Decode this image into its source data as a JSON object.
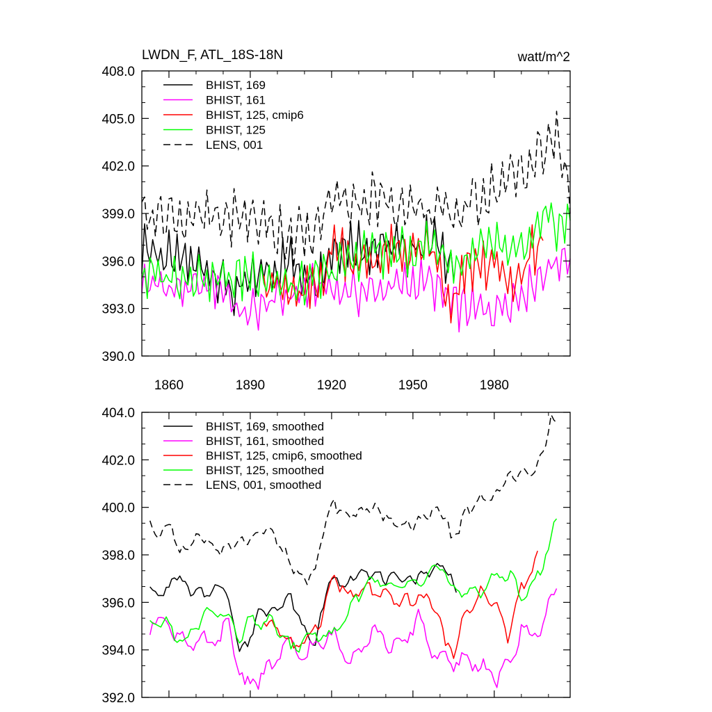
{
  "figure": {
    "title_left": "LWDN_F, ATL_18S-18N",
    "title_right": "watt/m^2"
  },
  "chart_data": [
    {
      "type": "line",
      "title": "LWDN_F, ATL_18S-18N",
      "units": "watt/m^2",
      "xlim": [
        1850,
        2008
      ],
      "ylim": [
        390,
        408
      ],
      "x_ticks": [
        1860,
        1890,
        1920,
        1950,
        1980
      ],
      "x_tick_labels": [
        "1860",
        "1890",
        "1920",
        "1950",
        "1980"
      ],
      "y_ticks": [
        390,
        393,
        396,
        399,
        402,
        405,
        408
      ],
      "y_tick_labels": [
        "390.0",
        "393.0",
        "396.0",
        "399.0",
        "402.0",
        "405.0",
        "408.0"
      ],
      "series": [
        {
          "name": "BHIST, 169",
          "color": "#000000",
          "dash": "",
          "x_start": 1850,
          "x_end": 1965,
          "period": 2.8,
          "base": [
            [
              1850,
              397.2
            ],
            [
              1860,
              396.0
            ],
            [
              1875,
              395.6
            ],
            [
              1885,
              393.8
            ],
            [
              1895,
              395.4
            ],
            [
              1905,
              396.0
            ],
            [
              1915,
              395.0
            ],
            [
              1922,
              397.2
            ],
            [
              1932,
              397.0
            ],
            [
              1945,
              396.8
            ],
            [
              1958,
              397.2
            ],
            [
              1965,
              396.0
            ]
          ],
          "amp": 1.7,
          "phase": 0.0
        },
        {
          "name": "BHIST, 161",
          "color": "#ff00ff",
          "dash": "",
          "x_start": 1850,
          "x_end": 2008,
          "period": 3.1,
          "base": [
            [
              1850,
              394.6
            ],
            [
              1865,
              394.2
            ],
            [
              1880,
              394.4
            ],
            [
              1887,
              392.5
            ],
            [
              1900,
              393.6
            ],
            [
              1915,
              394.4
            ],
            [
              1930,
              394.0
            ],
            [
              1945,
              394.4
            ],
            [
              1955,
              394.8
            ],
            [
              1965,
              393.2
            ],
            [
              1978,
              392.8
            ],
            [
              1990,
              394.0
            ],
            [
              2000,
              395.6
            ],
            [
              2008,
              396.4
            ]
          ],
          "amp": 1.4,
          "phase": 1.3
        },
        {
          "name": "BHIST, 125, cmip6",
          "color": "#ff0000",
          "dash": "",
          "x_start": 1895,
          "x_end": 1998,
          "period": 2.6,
          "base": [
            [
              1895,
              395.0
            ],
            [
              1907,
              393.6
            ],
            [
              1915,
              394.4
            ],
            [
              1921,
              397.2
            ],
            [
              1930,
              395.8
            ],
            [
              1940,
              396.4
            ],
            [
              1950,
              396.6
            ],
            [
              1958,
              396.4
            ],
            [
              1964,
              392.6
            ],
            [
              1970,
              395.6
            ],
            [
              1980,
              395.8
            ],
            [
              1986,
              394.2
            ],
            [
              1998,
              397.6
            ]
          ],
          "amp": 1.6,
          "phase": 2.1
        },
        {
          "name": "BHIST, 125",
          "color": "#00ff00",
          "dash": "",
          "x_start": 1850,
          "x_end": 2008,
          "period": 2.9,
          "base": [
            [
              1850,
              395.0
            ],
            [
              1870,
              395.2
            ],
            [
              1882,
              394.8
            ],
            [
              1892,
              395.4
            ],
            [
              1905,
              394.2
            ],
            [
              1915,
              394.8
            ],
            [
              1925,
              395.8
            ],
            [
              1935,
              396.8
            ],
            [
              1945,
              396.4
            ],
            [
              1958,
              397.2
            ],
            [
              1965,
              395.6
            ],
            [
              1975,
              396.8
            ],
            [
              1990,
              396.4
            ],
            [
              2000,
              398.6
            ],
            [
              2008,
              398.2
            ]
          ],
          "amp": 1.6,
          "phase": 0.7
        },
        {
          "name": "LENS, 001",
          "color": "#000000",
          "dash": "10,6",
          "x_start": 1850,
          "x_end": 2008,
          "period": 3.4,
          "base": [
            [
              1850,
              399.2
            ],
            [
              1870,
              398.6
            ],
            [
              1890,
              398.8
            ],
            [
              1905,
              397.6
            ],
            [
              1913,
              397.4
            ],
            [
              1920,
              400.0
            ],
            [
              1940,
              399.8
            ],
            [
              1955,
              399.2
            ],
            [
              1965,
              398.8
            ],
            [
              1975,
              400.2
            ],
            [
              1985,
              401.0
            ],
            [
              1995,
              402.4
            ],
            [
              2003,
              403.8
            ],
            [
              2008,
              400.6
            ]
          ],
          "amp": 1.9,
          "phase": 0.4
        }
      ]
    },
    {
      "type": "line",
      "title": "",
      "xlim": [
        1850,
        2008
      ],
      "ylim": [
        392,
        404
      ],
      "x_ticks": [
        1860,
        1890,
        1920,
        1950,
        1980
      ],
      "y_ticks": [
        392,
        394,
        396,
        398,
        400,
        402,
        404
      ],
      "y_tick_labels": [
        "392.0",
        "394.0",
        "396.0",
        "398.0",
        "400.0",
        "402.0",
        "404.0"
      ],
      "series": [
        {
          "name": "BHIST, 169, smoothed",
          "color": "#000000",
          "dash": "",
          "x_start": 1853,
          "x_end": 1966,
          "period": 5.5,
          "base": [
            [
              1853,
              396.8
            ],
            [
              1855,
              396.2
            ],
            [
              1860,
              396.6
            ],
            [
              1863,
              397.2
            ],
            [
              1868,
              396.4
            ],
            [
              1875,
              396.4
            ],
            [
              1880,
              396.8
            ],
            [
              1884,
              395.2
            ],
            [
              1886,
              394.0
            ],
            [
              1889,
              394.2
            ],
            [
              1893,
              395.6
            ],
            [
              1900,
              395.8
            ],
            [
              1905,
              396.2
            ],
            [
              1910,
              394.8
            ],
            [
              1914,
              394.2
            ],
            [
              1918,
              396.6
            ],
            [
              1921,
              397.0
            ],
            [
              1925,
              396.6
            ],
            [
              1930,
              397.4
            ],
            [
              1940,
              397.0
            ],
            [
              1950,
              397.0
            ],
            [
              1958,
              397.4
            ],
            [
              1962,
              397.6
            ],
            [
              1966,
              396.4
            ]
          ],
          "amp": 0.25,
          "phase": 0.3
        },
        {
          "name": "BHIST, 161, smoothed",
          "color": "#ff00ff",
          "dash": "",
          "x_start": 1853,
          "x_end": 2003,
          "period": 8.0,
          "base": [
            [
              1853,
              395.0
            ],
            [
              1858,
              395.4
            ],
            [
              1863,
              394.6
            ],
            [
              1870,
              394.2
            ],
            [
              1878,
              394.4
            ],
            [
              1882,
              395.0
            ],
            [
              1886,
              393.2
            ],
            [
              1888,
              392.5
            ],
            [
              1892,
              392.8
            ],
            [
              1898,
              393.2
            ],
            [
              1902,
              394.2
            ],
            [
              1910,
              393.8
            ],
            [
              1920,
              394.6
            ],
            [
              1927,
              393.6
            ],
            [
              1935,
              394.8
            ],
            [
              1945,
              394.0
            ],
            [
              1952,
              395.4
            ],
            [
              1958,
              393.8
            ],
            [
              1965,
              393.4
            ],
            [
              1972,
              393.6
            ],
            [
              1980,
              392.8
            ],
            [
              1986,
              393.4
            ],
            [
              1990,
              395.0
            ],
            [
              1994,
              394.4
            ],
            [
              2000,
              395.8
            ],
            [
              2003,
              396.4
            ]
          ],
          "amp": 0.45,
          "phase": 1.0
        },
        {
          "name": "BHIST, 125, cmip6, smoothed",
          "color": "#ff0000",
          "dash": "",
          "x_start": 1895,
          "x_end": 1996,
          "period": 7.0,
          "base": [
            [
              1895,
              395.2
            ],
            [
              1902,
              394.8
            ],
            [
              1906,
              394.0
            ],
            [
              1912,
              394.6
            ],
            [
              1917,
              395.6
            ],
            [
              1921,
              397.2
            ],
            [
              1926,
              396.2
            ],
            [
              1933,
              396.6
            ],
            [
              1940,
              396.2
            ],
            [
              1947,
              396.0
            ],
            [
              1952,
              396.2
            ],
            [
              1958,
              396.0
            ],
            [
              1962,
              394.2
            ],
            [
              1965,
              394.0
            ],
            [
              1970,
              395.6
            ],
            [
              1975,
              396.4
            ],
            [
              1980,
              396.0
            ],
            [
              1985,
              394.6
            ],
            [
              1990,
              396.6
            ],
            [
              1995,
              397.6
            ],
            [
              1996,
              397.8
            ]
          ],
          "amp": 0.35,
          "phase": 0.6
        },
        {
          "name": "BHIST, 125, smoothed",
          "color": "#00ff00",
          "dash": "",
          "x_start": 1853,
          "x_end": 2003,
          "period": 7.5,
          "base": [
            [
              1853,
              395.0
            ],
            [
              1858,
              395.2
            ],
            [
              1863,
              394.6
            ],
            [
              1866,
              394.2
            ],
            [
              1872,
              395.4
            ],
            [
              1876,
              395.6
            ],
            [
              1882,
              395.4
            ],
            [
              1886,
              394.4
            ],
            [
              1890,
              395.2
            ],
            [
              1895,
              395.2
            ],
            [
              1900,
              395.0
            ],
            [
              1905,
              394.0
            ],
            [
              1912,
              394.6
            ],
            [
              1920,
              394.6
            ],
            [
              1925,
              395.2
            ],
            [
              1930,
              396.4
            ],
            [
              1935,
              397.0
            ],
            [
              1942,
              396.6
            ],
            [
              1948,
              396.8
            ],
            [
              1955,
              397.2
            ],
            [
              1961,
              397.6
            ],
            [
              1964,
              396.4
            ],
            [
              1970,
              396.4
            ],
            [
              1976,
              396.6
            ],
            [
              1981,
              397.2
            ],
            [
              1986,
              397.0
            ],
            [
              1990,
              396.4
            ],
            [
              1994,
              396.6
            ],
            [
              1998,
              397.6
            ],
            [
              2001,
              398.8
            ],
            [
              2003,
              399.4
            ]
          ],
          "amp": 0.35,
          "phase": 2.0
        },
        {
          "name": "LENS, 001, smoothed",
          "color": "#000000",
          "dash": "10,6",
          "x_start": 1853,
          "x_end": 2003,
          "period": 5.5,
          "base": [
            [
              1853,
              399.2
            ],
            [
              1856,
              398.8
            ],
            [
              1861,
              399.2
            ],
            [
              1864,
              398.0
            ],
            [
              1870,
              398.6
            ],
            [
              1873,
              398.8
            ],
            [
              1878,
              398.2
            ],
            [
              1885,
              398.4
            ],
            [
              1892,
              398.8
            ],
            [
              1896,
              399.0
            ],
            [
              1900,
              398.6
            ],
            [
              1905,
              397.6
            ],
            [
              1910,
              397.0
            ],
            [
              1914,
              397.2
            ],
            [
              1918,
              399.6
            ],
            [
              1921,
              400.2
            ],
            [
              1926,
              399.6
            ],
            [
              1933,
              400.0
            ],
            [
              1940,
              399.6
            ],
            [
              1946,
              399.2
            ],
            [
              1952,
              399.4
            ],
            [
              1958,
              399.8
            ],
            [
              1962,
              399.6
            ],
            [
              1964,
              398.6
            ],
            [
              1970,
              399.8
            ],
            [
              1975,
              400.4
            ],
            [
              1980,
              400.4
            ],
            [
              1985,
              401.2
            ],
            [
              1990,
              401.6
            ],
            [
              1995,
              401.4
            ],
            [
              1998,
              402.2
            ],
            [
              2001,
              403.8
            ],
            [
              2003,
              403.4
            ]
          ],
          "amp": 0.3,
          "phase": 1.4
        }
      ]
    }
  ]
}
